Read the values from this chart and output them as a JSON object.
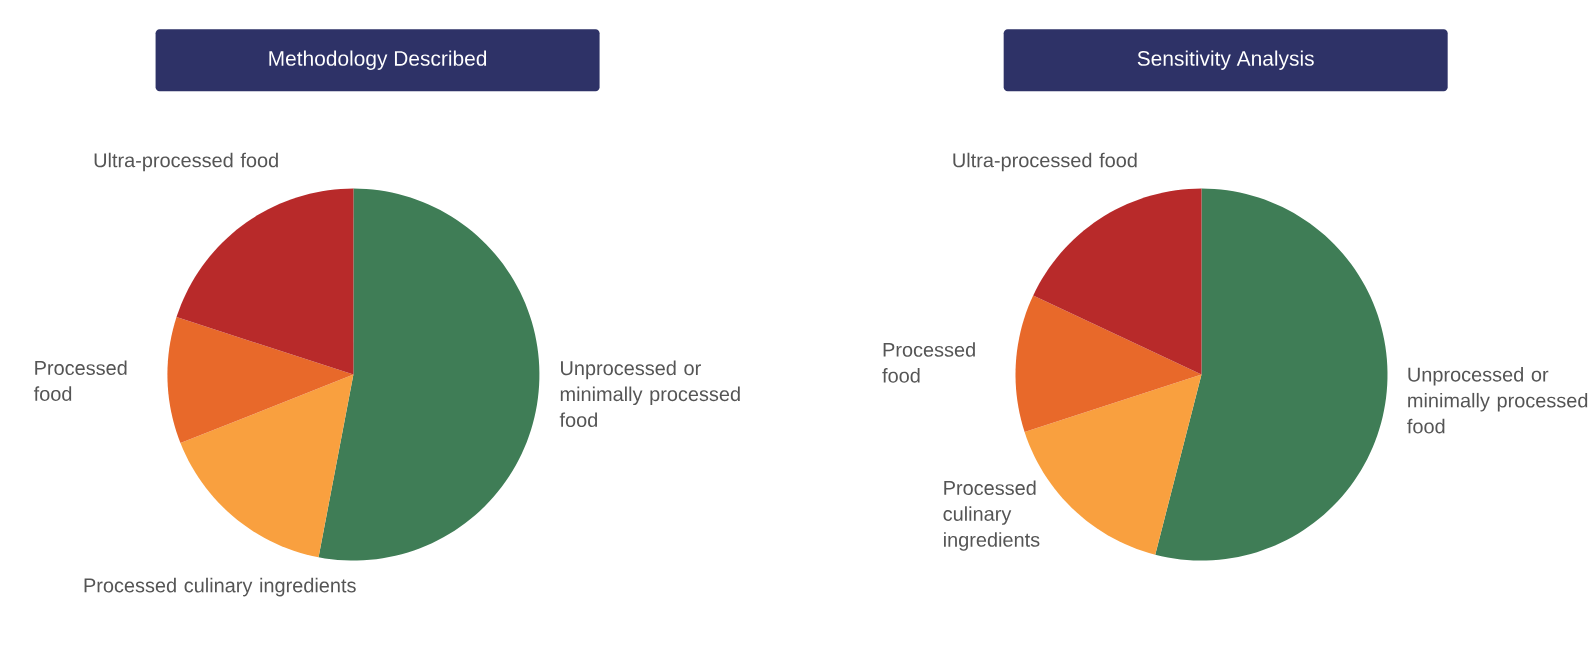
{
  "chart_data": [
    {
      "type": "pie",
      "title": "Methodology Described",
      "categories": [
        "Unprocessed or minimally processed food",
        "Processed culinary ingredients",
        "Processed food",
        "Ultra-processed food"
      ],
      "values": [
        53,
        16,
        11,
        20
      ],
      "colors": [
        "#3f7d56",
        "#f9a03f",
        "#e8692a",
        "#b82a2a"
      ]
    },
    {
      "type": "pie",
      "title": "Sensitivity Analysis",
      "categories": [
        "Unprocessed or minimally processed food",
        "Processed culinary ingredients",
        "Processed food",
        "Ultra-processed food"
      ],
      "values": [
        54,
        16,
        12,
        18
      ],
      "colors": [
        "#3f7d56",
        "#f9a03f",
        "#e8692a",
        "#b82a2a"
      ]
    }
  ]
}
